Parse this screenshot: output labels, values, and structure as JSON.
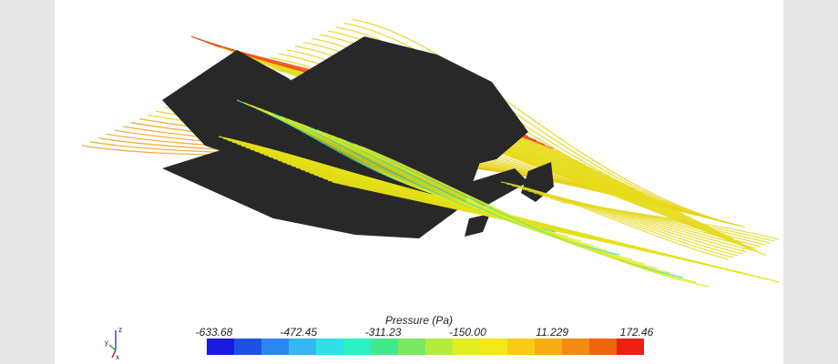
{
  "colorbar": {
    "title": "Pressure (Pa)",
    "ticks": [
      "-633.68",
      "-472.45",
      "-311.23",
      "-150.00",
      "11.229",
      "172.46"
    ],
    "colors": [
      "#1a1ae0",
      "#1f50e6",
      "#2a86ee",
      "#33b8f2",
      "#2fe0e8",
      "#2ef0c0",
      "#40ea8a",
      "#7ae860",
      "#b4ec3c",
      "#e0ee22",
      "#f4e818",
      "#f8cc14",
      "#f6ac12",
      "#f48a10",
      "#f0640e",
      "#ec2010"
    ]
  },
  "axes": {
    "z": "z",
    "y": "y",
    "x": "x"
  }
}
